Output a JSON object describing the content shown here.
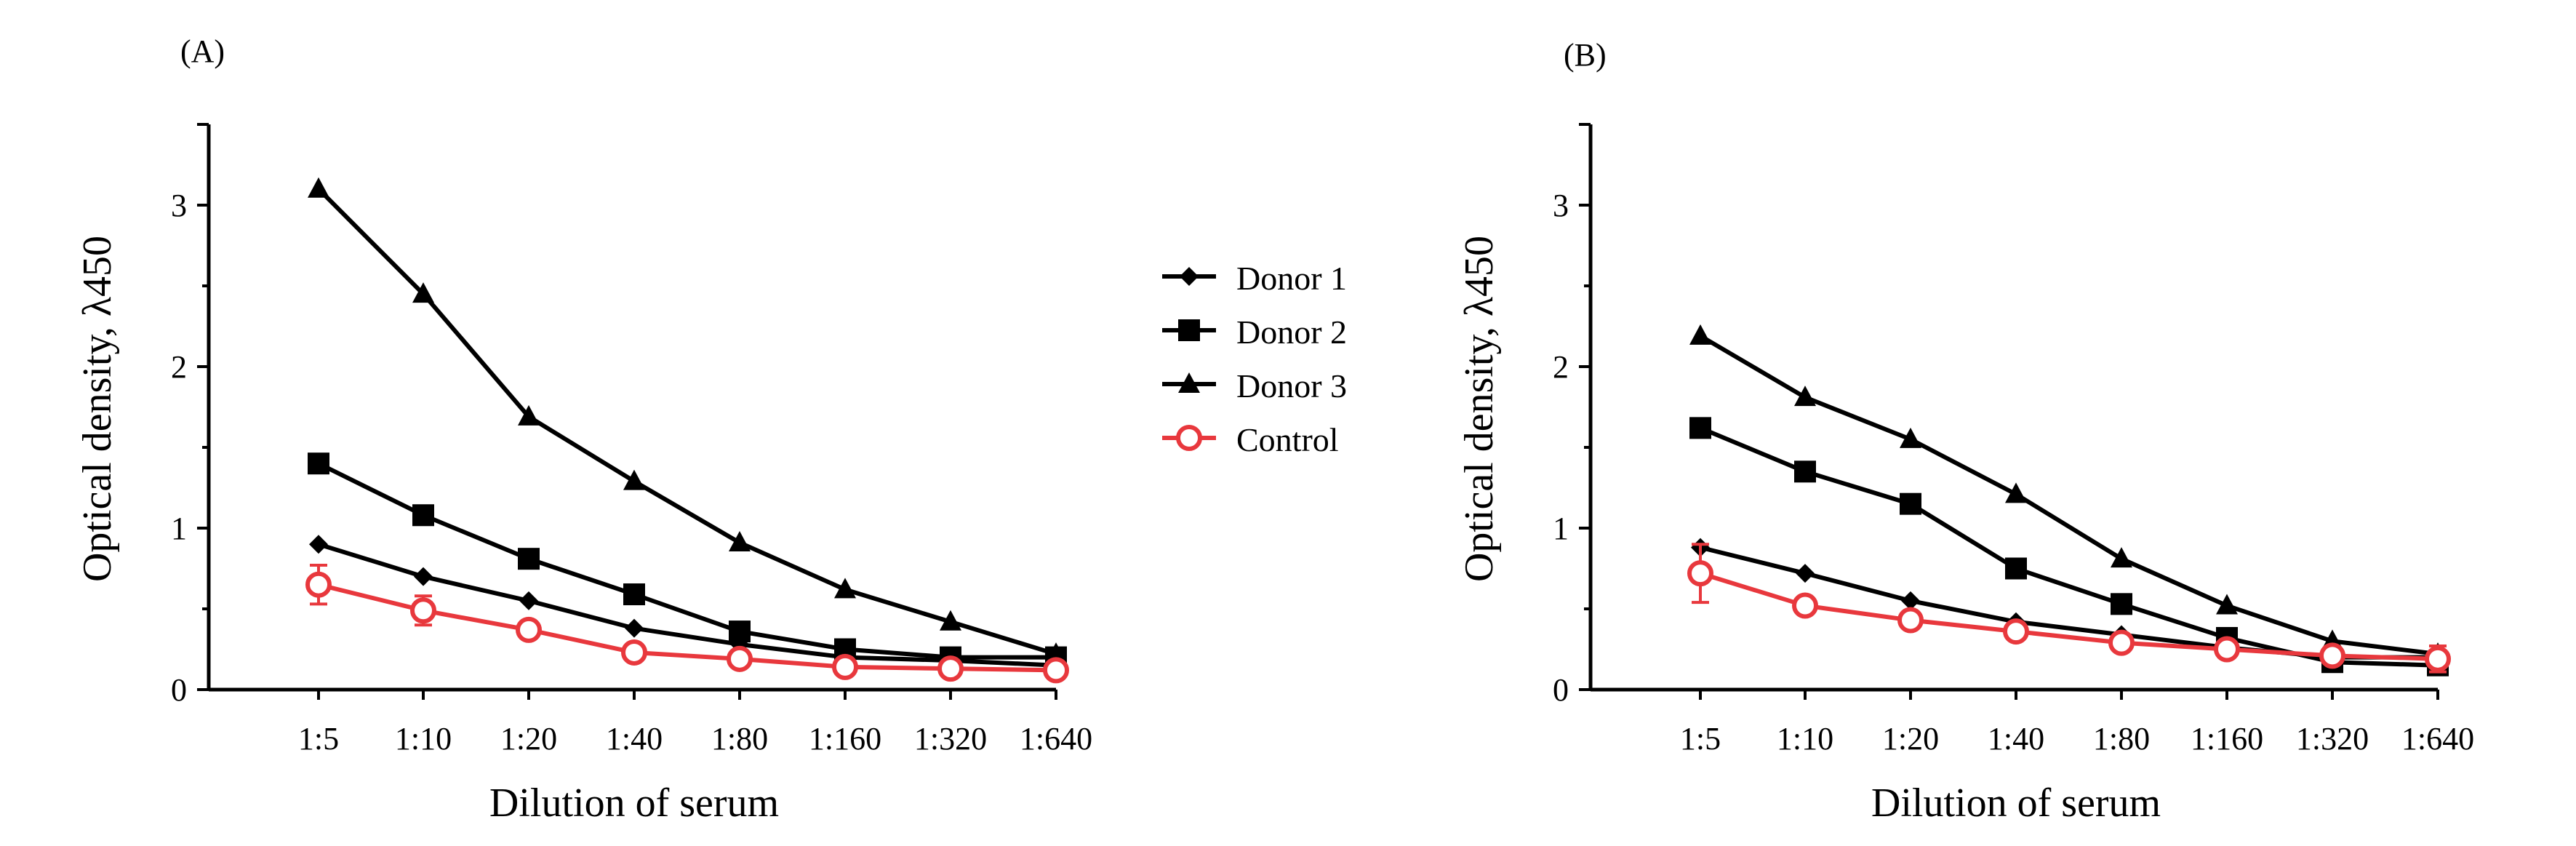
{
  "chart_data": [
    {
      "type": "line",
      "panel_label": "(A)",
      "xlabel": "Dilution of serum",
      "ylabel": "Optical density, λ450",
      "categories": [
        "1:5",
        "1:10",
        "1:20",
        "1:40",
        "1:80",
        "1:160",
        "1:320",
        "1:640"
      ],
      "ylim": [
        0,
        3.5
      ],
      "yticks": [
        "0",
        "1",
        "2",
        "3"
      ],
      "series": [
        {
          "name": "Donor 1",
          "marker": "diamond",
          "color": "#000000",
          "values": [
            0.9,
            0.7,
            0.55,
            0.38,
            0.28,
            0.2,
            0.18,
            0.15
          ]
        },
        {
          "name": "Donor 2",
          "marker": "square",
          "color": "#000000",
          "values": [
            1.4,
            1.08,
            0.81,
            0.59,
            0.36,
            0.25,
            0.2,
            0.2
          ]
        },
        {
          "name": "Donor 3",
          "marker": "triangle",
          "color": "#000000",
          "values": [
            3.1,
            2.45,
            1.69,
            1.29,
            0.91,
            0.62,
            0.42,
            0.22
          ]
        },
        {
          "name": "Control",
          "marker": "open-circle",
          "color": "#e8383d",
          "values": [
            0.65,
            0.49,
            0.37,
            0.23,
            0.19,
            0.14,
            0.13,
            0.12
          ],
          "error": [
            0.12,
            0.09,
            0.05,
            0.03,
            0.03,
            0.02,
            0.02,
            0.02
          ]
        }
      ]
    },
    {
      "type": "line",
      "panel_label": "(B)",
      "xlabel": "Dilution of serum",
      "ylabel": "Optical density, λ450",
      "categories": [
        "1:5",
        "1:10",
        "1:20",
        "1:40",
        "1:80",
        "1:160",
        "1:320",
        "1:640"
      ],
      "ylim": [
        0,
        3.5
      ],
      "yticks": [
        "0",
        "1",
        "2",
        "3"
      ],
      "series": [
        {
          "name": "Donor 1",
          "marker": "diamond",
          "color": "#000000",
          "values": [
            0.88,
            0.72,
            0.55,
            0.42,
            0.34,
            0.26,
            0.2,
            0.2
          ]
        },
        {
          "name": "Donor 2",
          "marker": "square",
          "color": "#000000",
          "values": [
            1.62,
            1.35,
            1.15,
            0.75,
            0.53,
            0.32,
            0.17,
            0.15
          ]
        },
        {
          "name": "Donor 3",
          "marker": "triangle",
          "color": "#000000",
          "values": [
            2.19,
            1.81,
            1.55,
            1.21,
            0.81,
            0.52,
            0.3,
            0.22
          ]
        },
        {
          "name": "Control",
          "marker": "open-circle",
          "color": "#e8383d",
          "values": [
            0.72,
            0.52,
            0.43,
            0.36,
            0.29,
            0.25,
            0.21,
            0.19
          ],
          "error": [
            0.18,
            0.03,
            0.03,
            0.03,
            0.03,
            0.03,
            0.03,
            0.08
          ]
        }
      ]
    }
  ],
  "legend": {
    "items": [
      {
        "name": "Donor 1",
        "marker": "diamond",
        "color": "#000000"
      },
      {
        "name": "Donor 2",
        "marker": "square",
        "color": "#000000"
      },
      {
        "name": "Donor 3",
        "marker": "triangle",
        "color": "#000000"
      },
      {
        "name": "Control",
        "marker": "open-circle",
        "color": "#e8383d"
      }
    ]
  }
}
